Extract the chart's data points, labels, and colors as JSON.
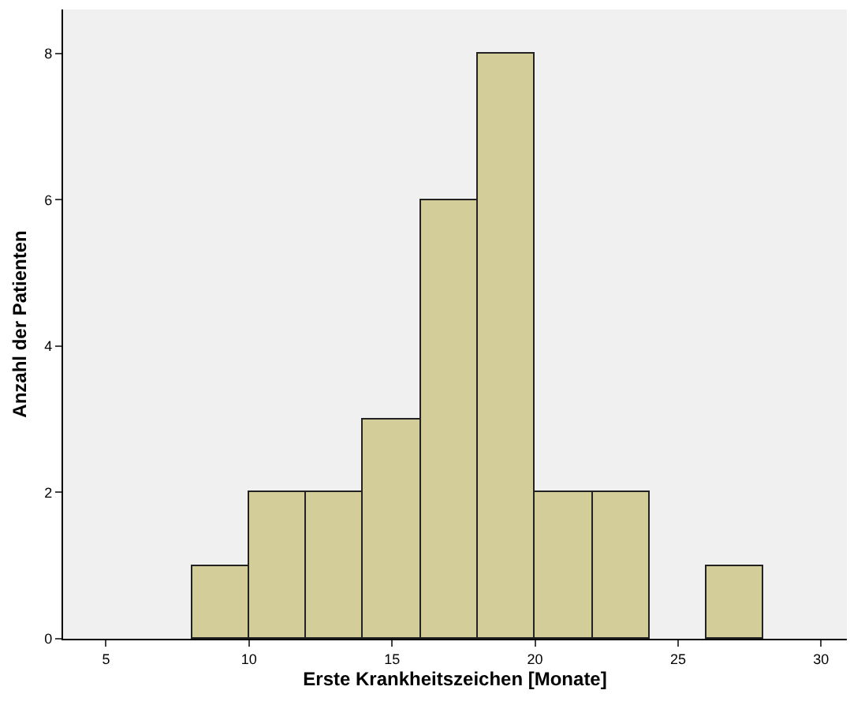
{
  "chart_data": {
    "type": "histogram",
    "xlabel": "Erste Krankheitszeichen [Monate]",
    "ylabel": "Anzahl der Patienten",
    "bins": [
      8,
      10,
      12,
      14,
      16,
      18,
      20,
      22,
      24,
      26,
      28
    ],
    "values": [
      1,
      2,
      2,
      3,
      6,
      8,
      2,
      2,
      0,
      1
    ],
    "color": "#d3ce99",
    "xlim": [
      3.5,
      30.9
    ],
    "xticks": [
      5,
      10,
      15,
      20,
      25,
      30
    ],
    "ylim": [
      0,
      8.6
    ],
    "yticks": [
      0,
      2,
      4,
      6,
      8
    ]
  }
}
